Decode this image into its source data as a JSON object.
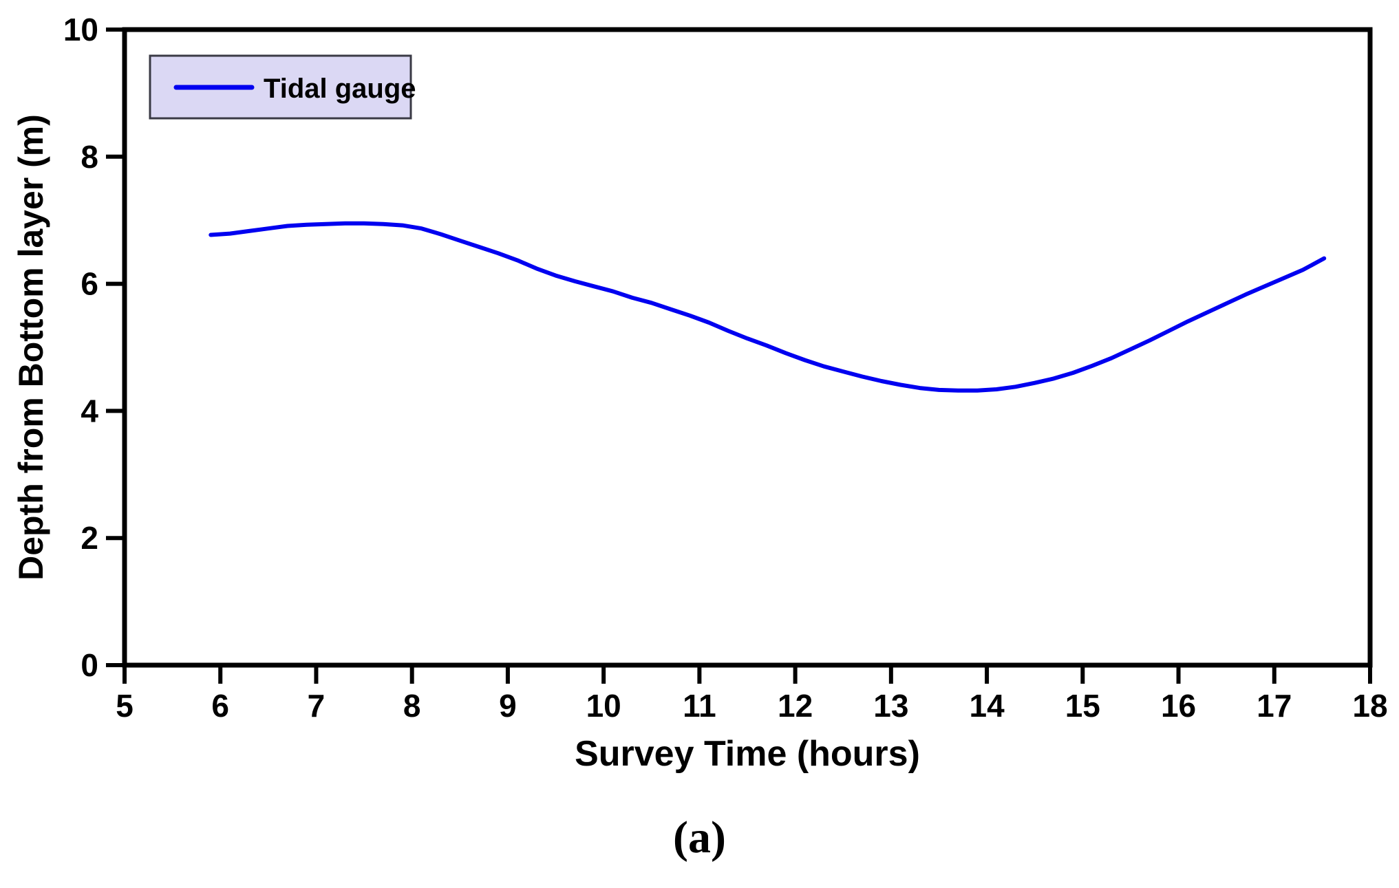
{
  "figure": {
    "caption": "(a)"
  },
  "colors": {
    "background": "#FFFFFF",
    "axis": "#000000",
    "line": "#0000F0",
    "legend_bg": "#DBD8F4",
    "legend_border": "#3A3A45",
    "text": "#000000"
  },
  "chart_data": {
    "type": "line",
    "title": "",
    "xlabel": "Survey Time (hours)",
    "ylabel": "Depth from Bottom layer (m)",
    "xlim": [
      5,
      18
    ],
    "ylim": [
      0,
      10
    ],
    "x_ticks": [
      5,
      6,
      7,
      8,
      9,
      10,
      11,
      12,
      13,
      14,
      15,
      16,
      17,
      18
    ],
    "y_ticks": [
      0,
      2,
      4,
      6,
      8,
      10
    ],
    "grid": false,
    "legend": {
      "position": "top-left",
      "entries": [
        {
          "label": "Tidal gauge",
          "color": "#0000F0"
        }
      ]
    },
    "series": [
      {
        "name": "Tidal gauge",
        "color": "#0000F0",
        "x": [
          5.9,
          6.1,
          6.3,
          6.5,
          6.7,
          6.9,
          7.1,
          7.3,
          7.5,
          7.7,
          7.9,
          8.1,
          8.3,
          8.5,
          8.7,
          8.9,
          9.1,
          9.3,
          9.5,
          9.7,
          9.9,
          10.1,
          10.3,
          10.5,
          10.7,
          10.9,
          11.1,
          11.3,
          11.5,
          11.7,
          11.9,
          12.1,
          12.3,
          12.5,
          12.7,
          12.9,
          13.1,
          13.3,
          13.5,
          13.7,
          13.9,
          14.1,
          14.3,
          14.5,
          14.7,
          14.9,
          15.1,
          15.3,
          15.5,
          15.7,
          15.9,
          16.1,
          16.3,
          16.5,
          16.7,
          16.9,
          17.1,
          17.3,
          17.52
        ],
        "y": [
          6.77,
          6.79,
          6.83,
          6.87,
          6.91,
          6.93,
          6.94,
          6.95,
          6.95,
          6.94,
          6.92,
          6.87,
          6.78,
          6.68,
          6.58,
          6.48,
          6.37,
          6.24,
          6.13,
          6.04,
          5.96,
          5.88,
          5.78,
          5.7,
          5.6,
          5.5,
          5.39,
          5.26,
          5.14,
          5.03,
          4.91,
          4.8,
          4.7,
          4.62,
          4.54,
          4.47,
          4.41,
          4.36,
          4.33,
          4.32,
          4.32,
          4.34,
          4.38,
          4.44,
          4.51,
          4.6,
          4.71,
          4.83,
          4.97,
          5.11,
          5.26,
          5.41,
          5.55,
          5.69,
          5.83,
          5.96,
          6.09,
          6.22,
          6.4
        ]
      }
    ]
  }
}
